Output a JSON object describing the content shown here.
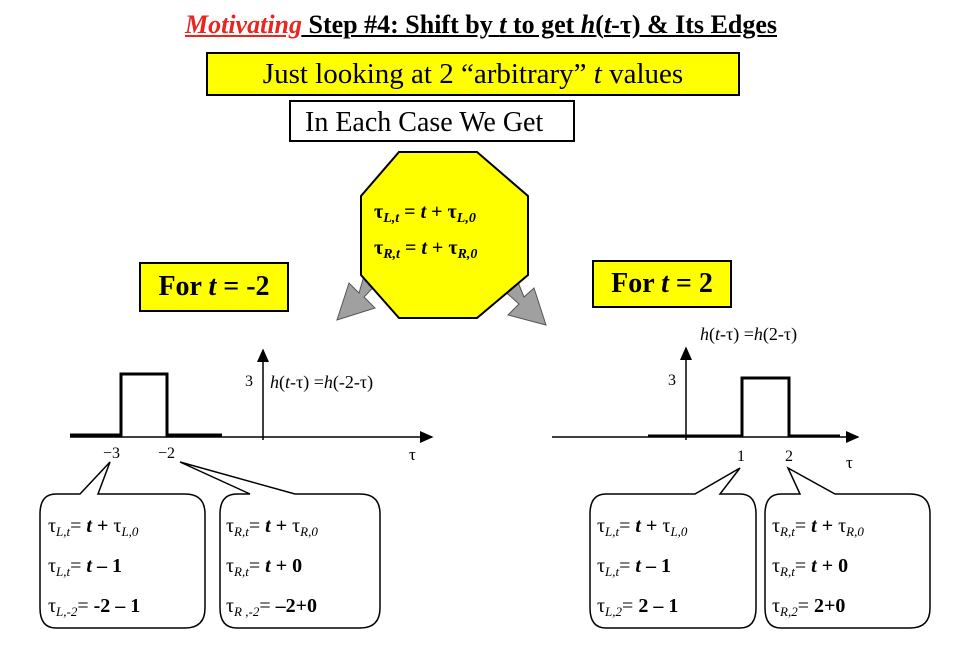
{
  "title": {
    "motivating": "Motivating",
    "rest": " Step #4: Shift by t to get h(t-τ) & Its Edges"
  },
  "looking_box": "Just looking at 2 “arbitrary” t values",
  "each_case_box": "In Each Case We Get",
  "octagon": {
    "line1": "τL,t = t + τL,0",
    "line2": "τR,t = t + τR,0"
  },
  "left": {
    "label": "For t = -2",
    "curve_label": "h(t-τ) =h(-2-τ)",
    "height_tick": "3",
    "ticks": [
      "−3",
      "−2"
    ],
    "axis_label": "τ",
    "callout_left": [
      "τL,t = t + τL,0",
      "τL,t = t – 1",
      "τL,-2 = -2 – 1"
    ],
    "callout_right": [
      "τR,t = t + τR,0",
      "τR,t = t + 0",
      "τR,-2 = −2+0"
    ]
  },
  "right": {
    "label": "For t = 2",
    "curve_label": "h(t-τ) =h(2-τ)",
    "height_tick": "3",
    "ticks": [
      "1",
      "2"
    ],
    "axis_label": "τ",
    "callout_left": [
      "τL,t = t + τL,0",
      "τL,t = t – 1",
      "τL,2 = 2 – 1"
    ],
    "callout_right": [
      "τR,t = t + τR,0",
      "τR,t = t + 0",
      "τR,2 = 2+0"
    ]
  },
  "colors": {
    "highlight": "#ffff00",
    "accent": "#e8251e",
    "arrow": "#a0a0a0"
  }
}
